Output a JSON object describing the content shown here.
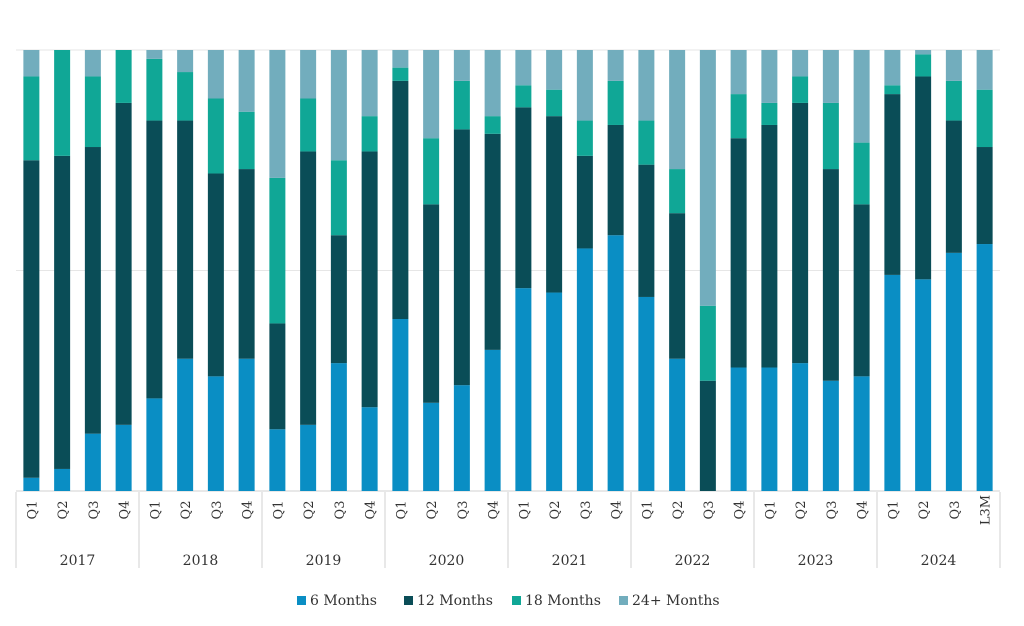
{
  "chart_data": {
    "type": "bar",
    "stacked": true,
    "percent_stacked": true,
    "ylim": [
      0,
      1
    ],
    "grid": true,
    "legend_position": "bottom",
    "groups": [
      {
        "label": "2017",
        "quarters": [
          "Q1",
          "Q2",
          "Q3",
          "Q4"
        ]
      },
      {
        "label": "2018",
        "quarters": [
          "Q1",
          "Q2",
          "Q3",
          "Q4"
        ]
      },
      {
        "label": "2019",
        "quarters": [
          "Q1",
          "Q2",
          "Q3",
          "Q4"
        ]
      },
      {
        "label": "2020",
        "quarters": [
          "Q1",
          "Q2",
          "Q3",
          "Q4"
        ]
      },
      {
        "label": "2021",
        "quarters": [
          "Q1",
          "Q2",
          "Q3",
          "Q4"
        ]
      },
      {
        "label": "2022",
        "quarters": [
          "Q1",
          "Q2",
          "Q3",
          "Q4"
        ]
      },
      {
        "label": "2023",
        "quarters": [
          "Q1",
          "Q2",
          "Q3",
          "Q4"
        ]
      },
      {
        "label": "2024",
        "quarters": [
          "Q1",
          "Q2",
          "Q3",
          "L3M"
        ]
      }
    ],
    "series": [
      {
        "name": "6 Months",
        "color": "#0a8ec4",
        "values": [
          0.03,
          0.05,
          0.13,
          0.15,
          0.21,
          0.3,
          0.26,
          0.3,
          0.14,
          0.15,
          0.29,
          0.19,
          0.39,
          0.2,
          0.24,
          0.32,
          0.46,
          0.45,
          0.55,
          0.58,
          0.44,
          0.3,
          0.0,
          0.28,
          0.28,
          0.29,
          0.25,
          0.26,
          0.49,
          0.48,
          0.54,
          0.56
        ]
      },
      {
        "name": "12 Months",
        "color": "#0a4d57",
        "values": [
          0.72,
          0.71,
          0.65,
          0.73,
          0.63,
          0.54,
          0.46,
          0.43,
          0.24,
          0.62,
          0.29,
          0.58,
          0.54,
          0.45,
          0.58,
          0.49,
          0.41,
          0.4,
          0.21,
          0.25,
          0.3,
          0.33,
          0.25,
          0.52,
          0.55,
          0.59,
          0.48,
          0.39,
          0.41,
          0.46,
          0.3,
          0.22
        ]
      },
      {
        "name": "18 Months",
        "color": "#10a796",
        "values": [
          0.19,
          0.24,
          0.16,
          0.12,
          0.14,
          0.11,
          0.17,
          0.13,
          0.33,
          0.12,
          0.17,
          0.08,
          0.03,
          0.15,
          0.11,
          0.04,
          0.05,
          0.06,
          0.08,
          0.1,
          0.1,
          0.1,
          0.17,
          0.1,
          0.05,
          0.06,
          0.15,
          0.14,
          0.02,
          0.05,
          0.09,
          0.13
        ]
      },
      {
        "name": "24+ Months",
        "color": "#72adbd",
        "values": [
          0.06,
          0.0,
          0.06,
          0.0,
          0.02,
          0.05,
          0.11,
          0.14,
          0.29,
          0.11,
          0.25,
          0.15,
          0.04,
          0.2,
          0.07,
          0.15,
          0.08,
          0.09,
          0.16,
          0.07,
          0.16,
          0.27,
          0.58,
          0.1,
          0.12,
          0.06,
          0.12,
          0.21,
          0.08,
          0.01,
          0.07,
          0.09
        ]
      }
    ]
  }
}
